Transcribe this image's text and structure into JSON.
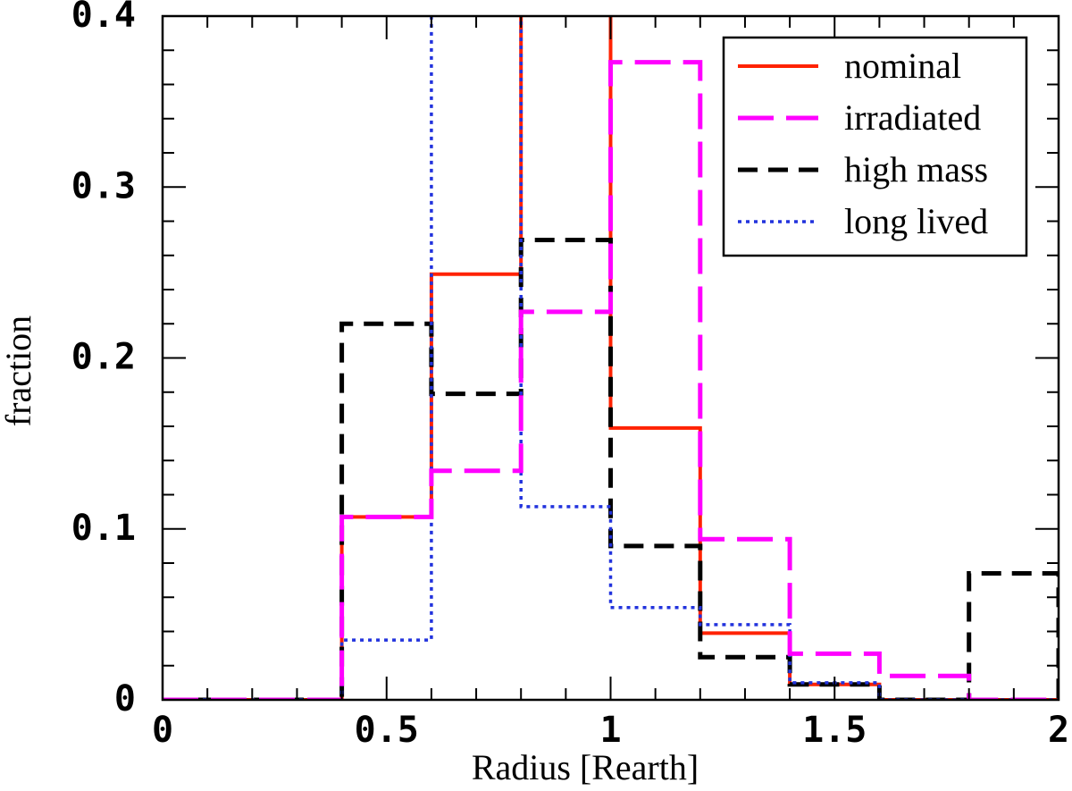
{
  "chart_data": {
    "type": "line",
    "step": true,
    "title": "",
    "xlabel": "Radius [Rearth]",
    "ylabel": "fraction",
    "xlim": [
      0,
      2
    ],
    "ylim": [
      0,
      0.4
    ],
    "xticks": [
      0,
      0.5,
      1,
      1.5,
      2
    ],
    "xtick_labels": [
      "0",
      "0.5",
      "1",
      "1.5",
      "2"
    ],
    "yticks": [
      0,
      0.1,
      0.2,
      0.3,
      0.4
    ],
    "ytick_labels": [
      "0",
      "0.1",
      "0.2",
      "0.3",
      "0.4"
    ],
    "grid": false,
    "legend_position": "top-right",
    "bin_edges": [
      0,
      0.2,
      0.4,
      0.6,
      0.8,
      1.0,
      1.2,
      1.4,
      1.6,
      1.8,
      2.0
    ],
    "series": [
      {
        "name": "nominal",
        "color": "#ff2200",
        "dash": "solid",
        "values": [
          0,
          0,
          0.107,
          0.249,
          0.55,
          0.159,
          0.039,
          0.009,
          0,
          0
        ]
      },
      {
        "name": "high mass",
        "color": "#000000",
        "dash": "dashed",
        "values": [
          0,
          0,
          0.22,
          0.179,
          0.269,
          0.09,
          0.025,
          0.009,
          0,
          0.074
        ]
      },
      {
        "name": "long lived",
        "color": "#2233dd",
        "dash": "dotted",
        "values": [
          0,
          0,
          0.035,
          0.55,
          0.113,
          0.054,
          0.044,
          0.01,
          0,
          0
        ]
      },
      {
        "name": "irradiated",
        "color": "#ff00ff",
        "dash": "long-dash",
        "values": [
          0,
          0,
          0.107,
          0.134,
          0.227,
          0.373,
          0.094,
          0.027,
          0.014,
          0
        ]
      }
    ],
    "legend_order": [
      "nominal",
      "irradiated",
      "high mass",
      "long lived"
    ]
  }
}
